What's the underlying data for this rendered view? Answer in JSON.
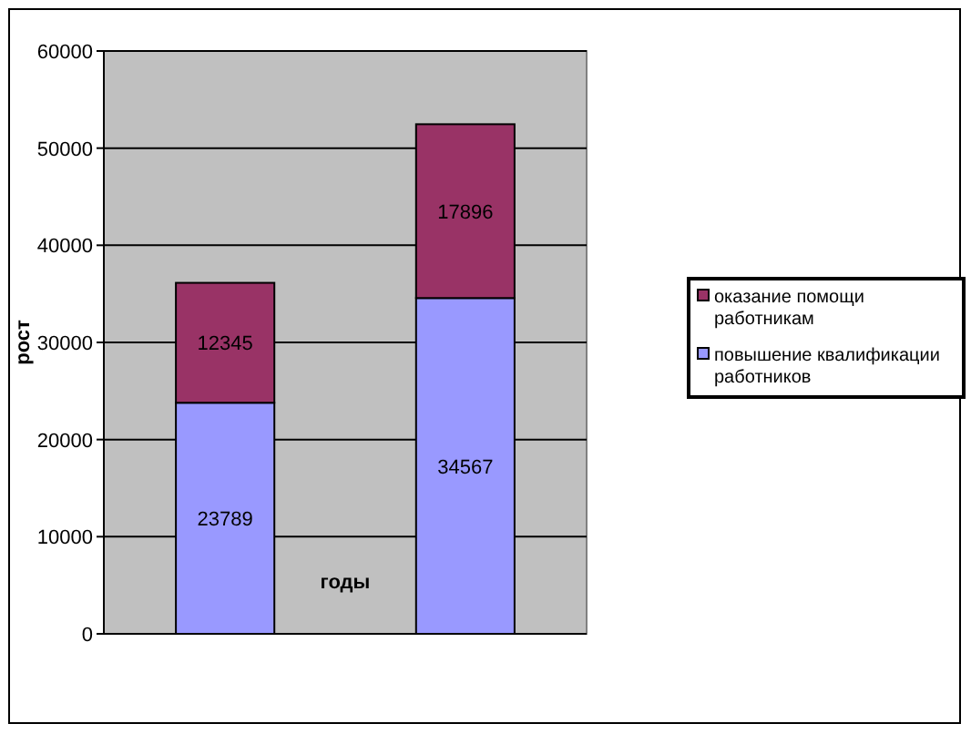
{
  "chart_data": {
    "type": "bar",
    "stacked": true,
    "xlabel": "годы",
    "ylabel": "рост",
    "categories": [
      null,
      null
    ],
    "series": [
      {
        "name": "повышение квалификации работников",
        "color": "#9999ff",
        "values": [
          23789,
          34567
        ]
      },
      {
        "name": "оказание помощи работникам",
        "color": "#993366",
        "values": [
          12345,
          17896
        ]
      }
    ],
    "ylim": [
      0,
      60000
    ],
    "yticks": [
      0,
      10000,
      20000,
      30000,
      40000,
      50000,
      60000
    ],
    "grid": "y",
    "data_labels": true,
    "legend": "right"
  }
}
